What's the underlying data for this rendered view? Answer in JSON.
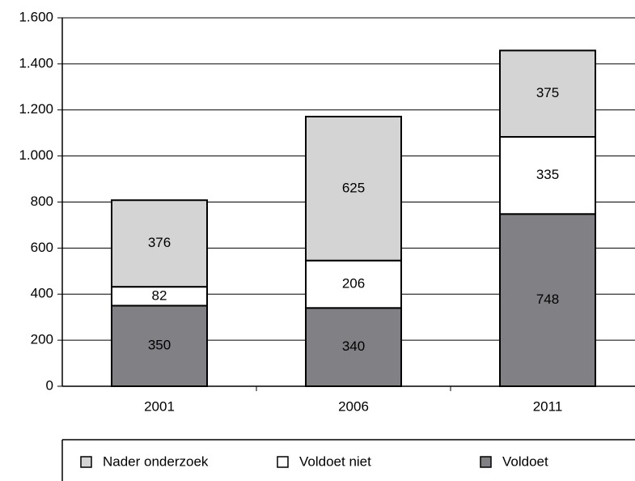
{
  "chart_data": {
    "type": "stacked_bar",
    "categories": [
      "2001",
      "2006",
      "2011"
    ],
    "series": [
      {
        "name": "Voldoet",
        "color": "#808085",
        "values": [
          350,
          340,
          748
        ]
      },
      {
        "name": "Voldoet niet",
        "color": "#ffffff",
        "values": [
          82,
          206,
          335
        ]
      },
      {
        "name": "Nader onderzoek",
        "color": "#d4d4d4",
        "values": [
          376,
          625,
          375
        ]
      }
    ],
    "ylim": [
      0,
      1600
    ],
    "yticks": [
      0,
      200,
      400,
      600,
      800,
      {
        "value": 1000,
        "label": "1.000"
      },
      {
        "value": 1200,
        "label": "1.200"
      },
      {
        "value": 1400,
        "label": "1.400"
      },
      {
        "value": 1600,
        "label": "1.600"
      }
    ],
    "grid": true
  }
}
